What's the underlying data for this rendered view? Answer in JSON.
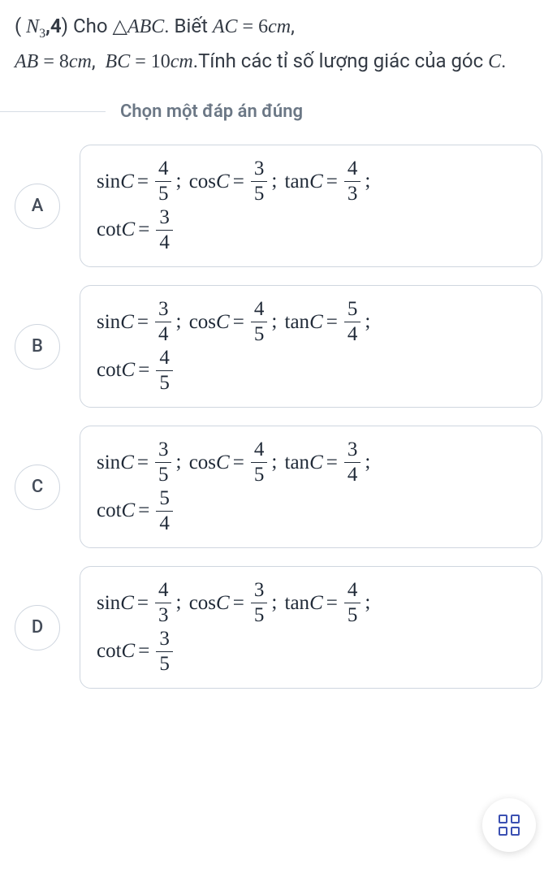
{
  "question": {
    "prefix_open": "( ",
    "n_label_html": "N",
    "n_sub": "3",
    "comma_bold": ",4",
    "prefix_close": ") ",
    "cho": "Cho ",
    "triangle": "△",
    "abc": "ABC",
    "period1": ". ",
    "biet": "Biết ",
    "ac": "AC",
    "eq": " = ",
    "six": "6",
    "cm": "cm",
    "comma": ",",
    "ab": "AB",
    "eight": "8",
    "bc": "BC",
    "ten": "10",
    "period2": ".",
    "tail": "Tính các tỉ số lượng giác của góc ",
    "c_var": "C",
    "period3": "."
  },
  "instruction": "Chọn một đáp án đúng",
  "fn": {
    "sin": "sin",
    "cos": "cos",
    "tan": "tan",
    "cot": "cot",
    "C": "C"
  },
  "options": [
    {
      "letter": "A",
      "sin": [
        "4",
        "5"
      ],
      "cos": [
        "3",
        "5"
      ],
      "tan": [
        "4",
        "3"
      ],
      "cot": [
        "3",
        "4"
      ]
    },
    {
      "letter": "B",
      "sin": [
        "3",
        "4"
      ],
      "cos": [
        "4",
        "5"
      ],
      "tan": [
        "5",
        "4"
      ],
      "cot": [
        "4",
        "5"
      ]
    },
    {
      "letter": "C",
      "sin": [
        "3",
        "5"
      ],
      "cos": [
        "4",
        "5"
      ],
      "tan": [
        "3",
        "4"
      ],
      "cot": [
        "5",
        "4"
      ]
    },
    {
      "letter": "D",
      "sin": [
        "4",
        "3"
      ],
      "cos": [
        "3",
        "5"
      ],
      "tan": [
        "4",
        "5"
      ],
      "cot": [
        "3",
        "5"
      ]
    }
  ],
  "colors": {
    "text": "#1f2937",
    "muted": "#6b7785",
    "border": "#cfd6df",
    "fab_icon": "#3b50b2"
  }
}
